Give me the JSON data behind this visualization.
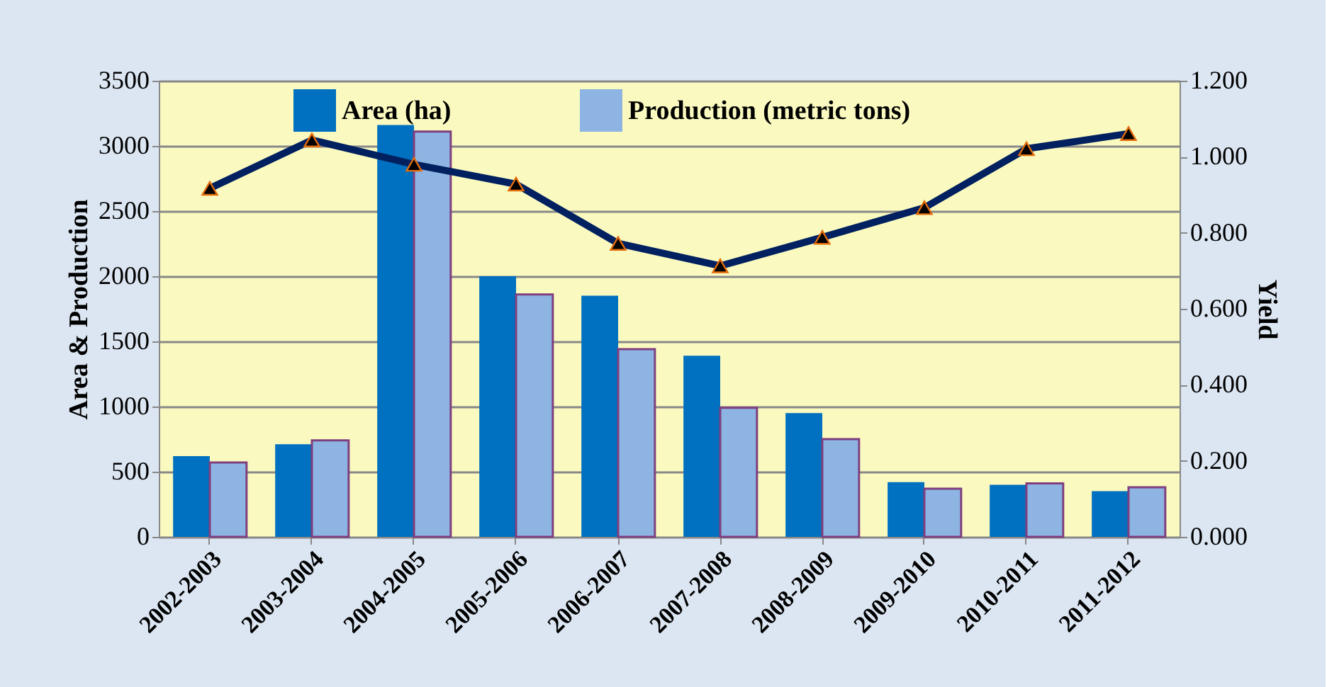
{
  "chart_data": {
    "type": "bar",
    "categories": [
      "2002-2003",
      "2003-2004",
      "2004-2005",
      "2005-2006",
      "2006-2007",
      "2007-2008",
      "2008-2009",
      "2009-2010",
      "2010-2011",
      "2011-2012"
    ],
    "series": [
      {
        "name": "Area (ha)",
        "color": "#0070c0",
        "values": [
          620,
          710,
          3160,
          2000,
          1850,
          1390,
          950,
          420,
          400,
          350
        ]
      },
      {
        "name": "Production (metric tons)",
        "color": "#8db4e2",
        "values": [
          570,
          740,
          3110,
          1860,
          1440,
          990,
          750,
          370,
          410,
          380
        ]
      },
      {
        "type": "line",
        "axis": "y2",
        "color": "#002060",
        "values": [
          0.917,
          1.044,
          0.98,
          0.928,
          0.772,
          0.713,
          0.788,
          0.866,
          1.021,
          1.061
        ]
      }
    ],
    "ylabel": "Area & Production",
    "y2label": "Yield",
    "ylim": [
      0,
      3500
    ],
    "yticks": [
      0,
      500,
      1000,
      1500,
      2000,
      2500,
      3000,
      3500
    ],
    "y2lim": [
      0,
      1.2
    ],
    "y2ticks": [
      {
        "value": 0,
        "label": "0.000"
      },
      {
        "value": 0.2,
        "label": "0.200"
      },
      {
        "value": 0.4,
        "label": "0.400"
      },
      {
        "value": 0.6,
        "label": "0.600"
      },
      {
        "value": 0.8,
        "label": "0.800"
      },
      {
        "value": 1.0,
        "label": "1.000"
      },
      {
        "value": 1.2,
        "label": "1.200"
      }
    ],
    "grid": "y",
    "legend": "top",
    "marker": "triangle"
  }
}
